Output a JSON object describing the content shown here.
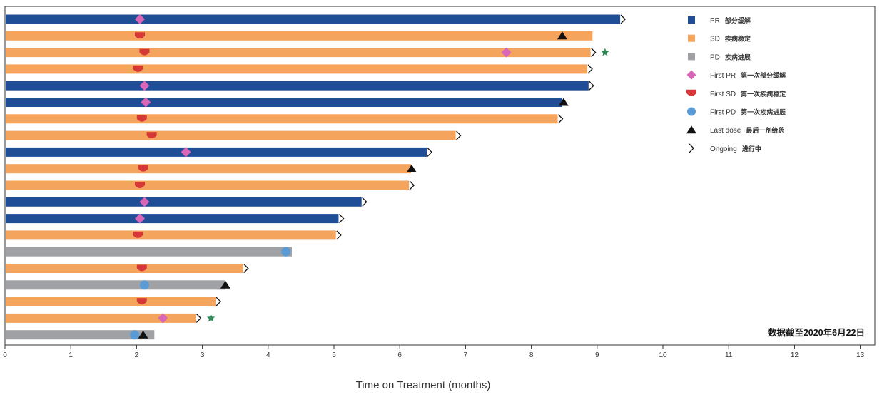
{
  "chart_data": {
    "type": "bar",
    "orientation": "horizontal",
    "title": "",
    "xlabel": "Time on Treatment (months)",
    "ylabel": "",
    "xlim": [
      0,
      13
    ],
    "xticks": [
      0,
      1,
      2,
      3,
      4,
      5,
      6,
      7,
      8,
      9,
      10,
      11,
      12,
      13
    ],
    "grid": false,
    "legend_position": "top-right",
    "annotation": "数据截至2020年6月22日",
    "colors": {
      "PR": "#1f4e96",
      "SD": "#f5a45d",
      "PD": "#9fa1a4",
      "first_pr": "#d966b7",
      "first_sd": "#d63838",
      "first_pd": "#5b9bd5",
      "last_dose": "#111111",
      "star": "#2e8b57"
    },
    "legend": [
      {
        "key": "PR",
        "label": "PR",
        "label_cn": "部分缓解",
        "marker": "square-pr"
      },
      {
        "key": "SD",
        "label": "SD",
        "label_cn": "疾病稳定",
        "marker": "square-sd"
      },
      {
        "key": "PD",
        "label": "PD",
        "label_cn": "疾病进展",
        "marker": "square-pd"
      },
      {
        "key": "first_pr",
        "label": "First PR",
        "label_cn": "第一次部分缓解",
        "marker": "diamond"
      },
      {
        "key": "first_sd",
        "label": "First SD",
        "label_cn": "第一次疾病稳定",
        "marker": "shield"
      },
      {
        "key": "first_pd",
        "label": "First PD",
        "label_cn": "第一次疾病进展",
        "marker": "circle"
      },
      {
        "key": "last_dose",
        "label": "Last dose",
        "label_cn": "最后一剂给药",
        "marker": "triangle"
      },
      {
        "key": "ongoing",
        "label": "Ongoing",
        "label_cn": "进行中",
        "marker": "chevron"
      }
    ],
    "patients": [
      {
        "response": "PR",
        "duration": 9.35,
        "ongoing": true,
        "first_pr": 2.05
      },
      {
        "response": "SD",
        "duration": 8.93,
        "ongoing": false,
        "first_sd": 2.05,
        "last_dose": 8.47
      },
      {
        "response": "SD",
        "duration": 8.9,
        "ongoing": true,
        "first_sd": 2.12,
        "first_pr": 7.62,
        "star": 9.12
      },
      {
        "response": "SD",
        "duration": 8.85,
        "ongoing": true,
        "first_sd": 2.02
      },
      {
        "response": "PR",
        "duration": 8.87,
        "ongoing": true,
        "first_pr": 2.12
      },
      {
        "response": "PR",
        "duration": 8.47,
        "ongoing": false,
        "first_pr": 2.14,
        "last_dose": 8.49
      },
      {
        "response": "SD",
        "duration": 8.4,
        "ongoing": true,
        "first_sd": 2.08
      },
      {
        "response": "SD",
        "duration": 6.85,
        "ongoing": true,
        "first_sd": 2.23
      },
      {
        "response": "PR",
        "duration": 6.41,
        "ongoing": true,
        "first_pr": 2.75
      },
      {
        "response": "SD",
        "duration": 6.17,
        "ongoing": false,
        "first_sd": 2.1,
        "last_dose": 6.18
      },
      {
        "response": "SD",
        "duration": 6.14,
        "ongoing": true,
        "first_sd": 2.05
      },
      {
        "response": "PR",
        "duration": 5.42,
        "ongoing": true,
        "first_pr": 2.12
      },
      {
        "response": "PR",
        "duration": 5.07,
        "ongoing": true,
        "first_pr": 2.05
      },
      {
        "response": "SD",
        "duration": 5.03,
        "ongoing": true,
        "first_sd": 2.02
      },
      {
        "response": "PD",
        "duration": 4.36,
        "ongoing": false,
        "first_pd": 4.27
      },
      {
        "response": "SD",
        "duration": 3.62,
        "ongoing": true,
        "first_sd": 2.08
      },
      {
        "response": "PD",
        "duration": 3.35,
        "ongoing": false,
        "first_pd": 2.12,
        "last_dose": 3.35
      },
      {
        "response": "SD",
        "duration": 3.2,
        "ongoing": true,
        "first_sd": 2.08
      },
      {
        "response": "SD",
        "duration": 2.9,
        "ongoing": true,
        "first_pr": 2.4,
        "star": 3.13
      },
      {
        "response": "PD",
        "duration": 2.27,
        "ongoing": false,
        "first_pd": 1.97,
        "last_dose": 2.1
      }
    ]
  }
}
